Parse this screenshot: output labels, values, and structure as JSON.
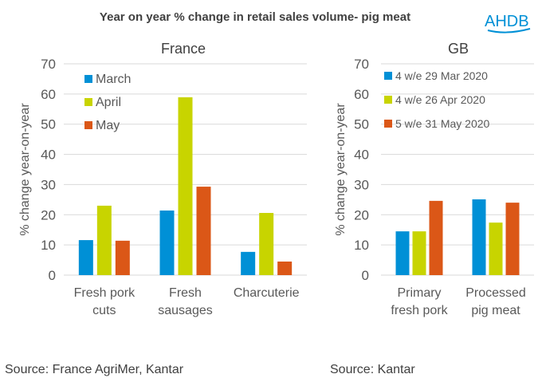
{
  "title": "Year on year % change in retail sales volume- pig meat",
  "logo": "AHDB",
  "colors": {
    "march": "#0090d6",
    "april": "#c8d400",
    "may": "#db5717",
    "grid": "#d9d9d9",
    "text": "#595959"
  },
  "chart_data": [
    {
      "type": "bar",
      "title": "France",
      "ylabel": "% change year-on-year",
      "ylim": [
        0,
        70
      ],
      "yticks": [
        "0",
        "10",
        "20",
        "30",
        "40",
        "50",
        "60",
        "70"
      ],
      "categories": [
        [
          "Fresh pork",
          "cuts"
        ],
        [
          "Fresh",
          "sausages"
        ],
        [
          "Charcuterie"
        ]
      ],
      "legend_position": "top-left",
      "series": [
        {
          "name": "March",
          "values": [
            11.6,
            21.4,
            7.7
          ]
        },
        {
          "name": "April",
          "values": [
            23.0,
            58.9,
            20.6
          ]
        },
        {
          "name": "May",
          "values": [
            11.4,
            29.3,
            4.5
          ]
        }
      ],
      "source": "Source: France AgriMer, Kantar"
    },
    {
      "type": "bar",
      "title": "GB",
      "ylabel": "% change year-on-year",
      "ylim": [
        0,
        70
      ],
      "yticks": [
        "0",
        "10",
        "20",
        "30",
        "40",
        "50",
        "60",
        "70"
      ],
      "categories": [
        [
          "Primary",
          "fresh pork"
        ],
        [
          "Processed",
          "pig meat"
        ]
      ],
      "legend_position": "top",
      "series": [
        {
          "name": "4 w/e 29 Mar 2020",
          "values": [
            14.5,
            25.1
          ]
        },
        {
          "name": "4 w/e 26 Apr 2020",
          "values": [
            14.5,
            17.4
          ]
        },
        {
          "name": "5 w/e 31 May 2020",
          "values": [
            24.6,
            24.0
          ]
        }
      ],
      "source": "Source: Kantar"
    }
  ]
}
